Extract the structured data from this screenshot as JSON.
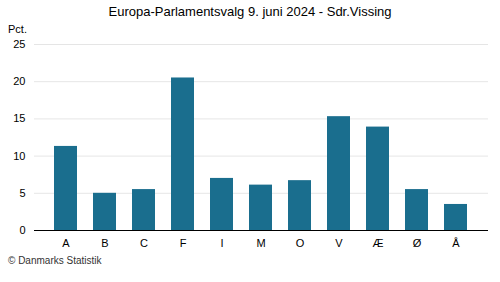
{
  "chart_data": {
    "type": "bar",
    "title": "Europa-Parlamentsvalg 9. juni 2024 - Sdr.Vissing",
    "ylabel": "Pct.",
    "caption": "© Danmarks Statistik",
    "categories": [
      "A",
      "B",
      "C",
      "F",
      "I",
      "M",
      "O",
      "V",
      "Æ",
      "Ø",
      "Å"
    ],
    "values": [
      11.3,
      5.0,
      5.5,
      20.5,
      7.0,
      6.1,
      6.7,
      15.3,
      13.9,
      5.5,
      3.5
    ],
    "color": "#1a6e8e",
    "ylim": [
      0,
      25
    ],
    "yticks": [
      0,
      5,
      10,
      15,
      20,
      25
    ],
    "grid": true
  }
}
